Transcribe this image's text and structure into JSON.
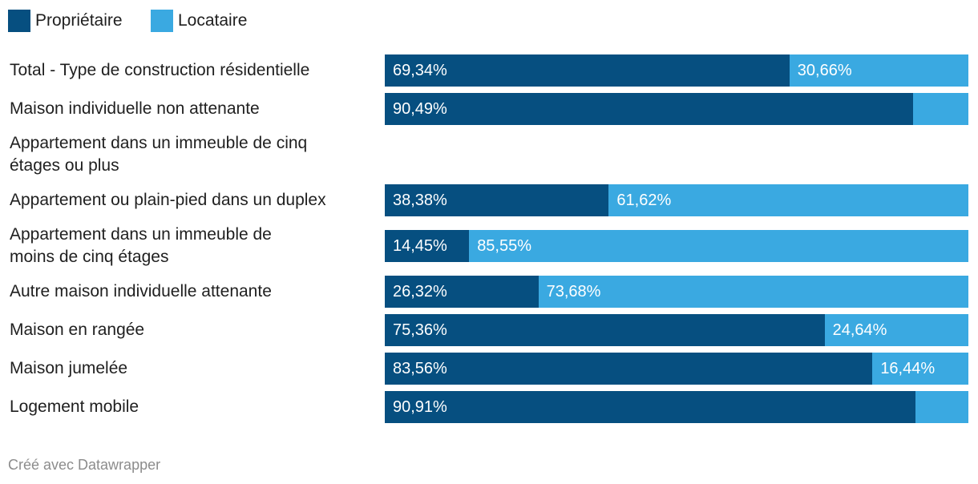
{
  "chart_data": {
    "type": "bar",
    "orientation": "horizontal",
    "stacked": true,
    "categories": [
      "Total - Type de construction résidentielle",
      "Maison individuelle non attenante",
      "Appartement dans un immeuble de cinq étages ou plus",
      "Appartement ou plain-pied dans un duplex",
      "Appartement dans un immeuble de moins de cinq étages",
      "Autre maison individuelle attenante",
      "Maison en rangée",
      "Maison jumelée",
      "Logement mobile"
    ],
    "series": [
      {
        "name": "Propriétaire",
        "color": "#064f80",
        "values": [
          69.34,
          90.49,
          null,
          38.38,
          14.45,
          26.32,
          75.36,
          83.56,
          90.91
        ],
        "labels": [
          "69,34%",
          "90,49%",
          null,
          "38,38%",
          "14,45%",
          "26,32%",
          "75,36%",
          "83,56%",
          "90,91%"
        ]
      },
      {
        "name": "Locataire",
        "color": "#3aa9e1",
        "values": [
          30.66,
          9.51,
          null,
          61.62,
          85.55,
          73.68,
          24.64,
          16.44,
          9.09
        ],
        "labels": [
          "30,66%",
          null,
          null,
          "61,62%",
          "85,55%",
          "73,68%",
          "24,64%",
          "16,44%",
          null
        ]
      }
    ],
    "xlim": [
      0,
      100
    ],
    "grid": false,
    "legend_position": "top-left"
  },
  "footer": {
    "credit": "Créé avec Datawrapper"
  }
}
